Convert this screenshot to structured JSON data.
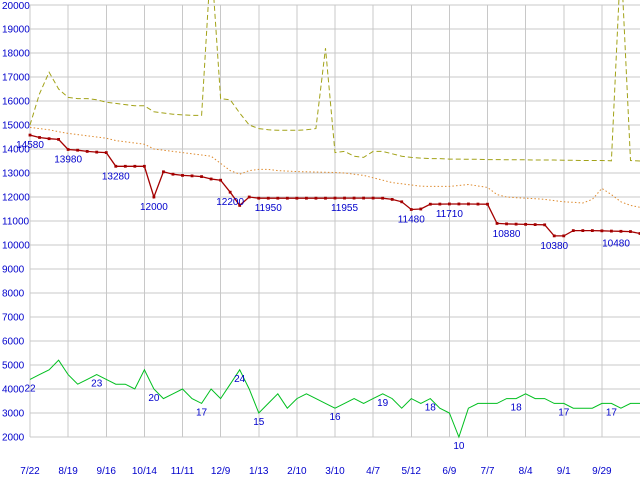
{
  "chart_data": {
    "type": "line",
    "title": "",
    "grid": true,
    "colors": {
      "background": "#ffffff",
      "grid": "#c8c8c8",
      "label": "#0000cc"
    },
    "y_axis": {
      "min": 2000,
      "max": 20000,
      "step": 1000,
      "tick_labels": [
        "2000",
        "3000",
        "4000",
        "5000",
        "6000",
        "7000",
        "8000",
        "9000",
        "10000",
        "11000",
        "12000",
        "13000",
        "14000",
        "15000",
        "16000",
        "17000",
        "18000",
        "19000",
        "20000"
      ]
    },
    "x_axis": {
      "max_sample": 64,
      "ticks": [
        {
          "label": "7/22",
          "sample": 0
        },
        {
          "label": "8/19",
          "sample": 4
        },
        {
          "label": "9/16",
          "sample": 8
        },
        {
          "label": "10/14",
          "sample": 12
        },
        {
          "label": "11/11",
          "sample": 16
        },
        {
          "label": "12/9",
          "sample": 20
        },
        {
          "label": "1/13",
          "sample": 24
        },
        {
          "label": "2/10",
          "sample": 28
        },
        {
          "label": "3/10",
          "sample": 32
        },
        {
          "label": "4/7",
          "sample": 36
        },
        {
          "label": "5/12",
          "sample": 40
        },
        {
          "label": "6/9",
          "sample": 44
        },
        {
          "label": "7/7",
          "sample": 48
        },
        {
          "label": "8/4",
          "sample": 52
        },
        {
          "label": "9/1",
          "sample": 56
        },
        {
          "label": "9/29",
          "sample": 60
        }
      ]
    },
    "series": [
      {
        "id": "highest-price",
        "color": "#a2a218",
        "line_style": "dashed",
        "values": [
          15000,
          16300,
          17200,
          16500,
          16150,
          16100,
          16100,
          16050,
          15950,
          15900,
          15850,
          15800,
          15800,
          15550,
          15500,
          15450,
          15420,
          15400,
          15400,
          22000,
          16100,
          16050,
          15500,
          15000,
          14850,
          14800,
          14780,
          14780,
          14780,
          14800,
          14850,
          18200,
          13850,
          13900,
          13700,
          13650,
          13900,
          13900,
          13800,
          13700,
          13650,
          13620,
          13600,
          13600,
          13580,
          13580,
          13570,
          13570,
          13560,
          13560,
          13550,
          13550,
          13550,
          13540,
          13540,
          13540,
          13530,
          13530,
          13520,
          13520,
          13520,
          13510,
          22000,
          13520,
          13500
        ]
      },
      {
        "id": "average-price",
        "color": "#de8b2f",
        "line_style": "dotted",
        "values": [
          14900,
          14850,
          14800,
          14720,
          14650,
          14600,
          14550,
          14500,
          14450,
          14350,
          14300,
          14250,
          14200,
          14000,
          13950,
          13900,
          13850,
          13800,
          13750,
          13700,
          13400,
          13100,
          12950,
          13100,
          13150,
          13150,
          13100,
          13080,
          13060,
          13050,
          13040,
          13030,
          13020,
          13000,
          12950,
          12900,
          12800,
          12700,
          12600,
          12550,
          12500,
          12450,
          12440,
          12440,
          12440,
          12480,
          12520,
          12460,
          12400,
          12100,
          12000,
          11970,
          11950,
          11930,
          11900,
          11850,
          11800,
          11780,
          11750,
          11900,
          12360,
          12100,
          11800,
          11650,
          11570
        ]
      },
      {
        "id": "listing-count",
        "color": "#00bf1f",
        "line_style": "solid",
        "value_scale": 200,
        "counts": [
          22,
          23,
          24,
          26,
          23,
          21,
          22,
          23,
          22,
          21,
          21,
          20,
          24,
          20,
          18,
          19,
          20,
          18,
          17,
          20,
          18,
          21,
          24,
          20,
          15,
          17,
          19,
          16,
          18,
          19,
          18,
          17,
          16,
          17,
          18,
          17,
          18,
          19,
          18,
          16,
          18,
          17,
          18,
          16,
          15,
          10,
          16,
          17,
          17,
          17,
          18,
          18,
          19,
          18,
          18,
          17,
          17,
          16,
          16,
          16,
          17,
          17,
          16,
          17,
          17
        ]
      },
      {
        "id": "lowest-price",
        "color": "#a40000",
        "line_style": "solid",
        "markers": "square",
        "values": [
          14580,
          14480,
          14430,
          14400,
          13980,
          13950,
          13900,
          13870,
          13850,
          13280,
          13280,
          13280,
          13280,
          12000,
          13050,
          12950,
          12900,
          12880,
          12850,
          12750,
          12700,
          12200,
          11650,
          12000,
          11950,
          11950,
          11950,
          11950,
          11950,
          11950,
          11950,
          11950,
          11955,
          11955,
          11955,
          11955,
          11955,
          11950,
          11900,
          11800,
          11480,
          11500,
          11700,
          11705,
          11710,
          11710,
          11710,
          11705,
          11700,
          10900,
          10880,
          10870,
          10860,
          10850,
          10840,
          10380,
          10380,
          10600,
          10600,
          10600,
          10590,
          10580,
          10570,
          10560,
          10480
        ]
      }
    ],
    "price_labels": [
      {
        "text": "14580",
        "sample": 0,
        "value": 14580
      },
      {
        "text": "13980",
        "sample": 4,
        "value": 13980
      },
      {
        "text": "13280",
        "sample": 9,
        "value": 13280
      },
      {
        "text": "12000",
        "sample": 13,
        "value": 12000
      },
      {
        "text": "12200",
        "sample": 21,
        "value": 12200
      },
      {
        "text": "11950",
        "sample": 25,
        "value": 11950
      },
      {
        "text": "11955",
        "sample": 33,
        "value": 11955
      },
      {
        "text": "11480",
        "sample": 40,
        "value": 11480
      },
      {
        "text": "11710",
        "sample": 44,
        "value": 11710
      },
      {
        "text": "10880",
        "sample": 50,
        "value": 10880
      },
      {
        "text": "10380",
        "sample": 55,
        "value": 10380
      },
      {
        "text": "10480",
        "sample": 64,
        "value": 10480
      }
    ],
    "count_labels": [
      {
        "text": "22",
        "sample": 0,
        "count": 22
      },
      {
        "text": "23",
        "sample": 7,
        "count": 23
      },
      {
        "text": "20",
        "sample": 13,
        "count": 20
      },
      {
        "text": "17",
        "sample": 18,
        "count": 17
      },
      {
        "text": "24",
        "sample": 22,
        "count": 24
      },
      {
        "text": "15",
        "sample": 24,
        "count": 15
      },
      {
        "text": "16",
        "sample": 32,
        "count": 16
      },
      {
        "text": "19",
        "sample": 37,
        "count": 19
      },
      {
        "text": "18",
        "sample": 42,
        "count": 18
      },
      {
        "text": "10",
        "sample": 45,
        "count": 10
      },
      {
        "text": "18",
        "sample": 51,
        "count": 18
      },
      {
        "text": "17",
        "sample": 56,
        "count": 17
      },
      {
        "text": "17",
        "sample": 61,
        "count": 17
      }
    ]
  }
}
